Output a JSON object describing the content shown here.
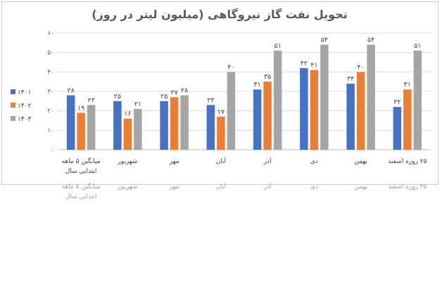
{
  "chart_data": {
    "type": "bar",
    "title": "تحویل نفت گاز نیروگاهی (میلیون لیتر در روز)",
    "categories": [
      [
        "میانگین ۵ ماهه",
        "ابتدایی سال"
      ],
      [
        "شهریور"
      ],
      [
        "مهر"
      ],
      [
        "آبان"
      ],
      [
        "آذر"
      ],
      [
        "دی"
      ],
      [
        "بهمن"
      ],
      [
        "۲۵ روزه اسفند"
      ]
    ],
    "series": [
      {
        "name": "۱۴۰۱",
        "color": "#4472c4",
        "values": [
          28,
          25,
          25,
          23,
          31,
          42,
          34,
          22
        ],
        "labels": [
          "۲۸",
          "۲۵",
          "۲۵",
          "۲۳",
          "۳۱",
          "۴۲",
          "۳۴",
          "۲۲"
        ]
      },
      {
        "name": "۱۴۰۲",
        "color": "#ed7d31",
        "values": [
          19,
          16,
          27,
          17,
          35,
          41,
          40,
          31
        ],
        "labels": [
          "۱۹",
          "۱۶",
          "۲۷",
          "۱۷",
          "۳۵",
          "۴۱",
          "۴۰",
          "۳۱"
        ]
      },
      {
        "name": "۱۴۰۳",
        "color": "#a5a5a5",
        "values": [
          23,
          21,
          28,
          40,
          51,
          54,
          54,
          51
        ],
        "labels": [
          "۲۳",
          "۲۱",
          "۲۸",
          "۴۰",
          "۵۱",
          "۵۴",
          "۵۴",
          "۵۱"
        ]
      }
    ],
    "ylim": [
      0,
      60
    ],
    "yticks": [
      0,
      10,
      20,
      30,
      40,
      50,
      60
    ],
    "ytick_labels": [
      "۰",
      "۱۰",
      "۲۰",
      "۳۰",
      "۴۰",
      "۵۰",
      "۶۰"
    ],
    "xlabel": "",
    "ylabel": "",
    "grid": true,
    "legend": "left"
  }
}
